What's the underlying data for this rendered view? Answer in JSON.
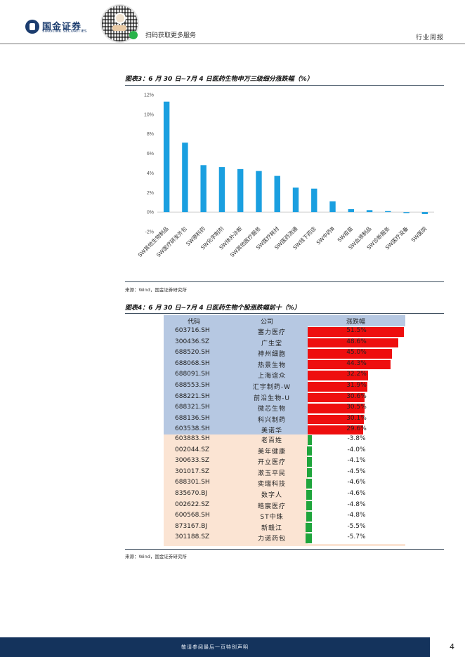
{
  "header": {
    "logo_cn": "国金证券",
    "logo_en": "SINOLINK SECURITIES",
    "scan_text": "扫码获取更多服务",
    "report_type": "行业周报"
  },
  "figure3": {
    "caption": "图表3：6 月 30 日~7月 4 日医药生物申万三级细分涨跌幅（%）",
    "source": "来源：Wind，国金证券研究所"
  },
  "chart_data": {
    "type": "bar",
    "title": "6 月 30 日~7月 4 日医药生物申万三级细分涨跌幅（%）",
    "ylabel": "",
    "xlabel": "",
    "ylim": [
      -2,
      12
    ],
    "yticks": [
      "12%",
      "10%",
      "8%",
      "6%",
      "4%",
      "2%",
      "0%",
      "-2%"
    ],
    "ytick_values": [
      12,
      10,
      8,
      6,
      4,
      2,
      0,
      -2
    ],
    "categories": [
      "SW其他生物制品",
      "SW医疗研发外包",
      "SW原料药",
      "SW化学制剂",
      "SW体外诊断",
      "SW其他医疗服务",
      "SW医疗耗材",
      "SW医药流通",
      "SW线下药店",
      "SW中药Ⅲ",
      "SW疫苗",
      "SW血液制品",
      "SW诊断服务",
      "SW医疗设备",
      "SW医院"
    ],
    "values": [
      11.3,
      7.1,
      4.8,
      4.6,
      4.4,
      4.2,
      3.7,
      2.5,
      2.4,
      1.1,
      0.3,
      0.2,
      0.1,
      -0.1,
      -0.2
    ],
    "bar_color": "#1a9fe0",
    "grid": false
  },
  "figure4": {
    "caption": "图表4：6 月 30 日~7月 4 日医药生物个股涨跌幅前十（%）",
    "source": "来源：Wind，国金证券研究所",
    "headers": [
      "代码",
      "公司",
      "涨跌幅"
    ],
    "gainers": [
      {
        "code": "603716.SH",
        "name": "塞力医疗",
        "change": "51.5%",
        "value": 51.5
      },
      {
        "code": "300436.SZ",
        "name": "广生堂",
        "change": "48.6%",
        "value": 48.6
      },
      {
        "code": "688520.SH",
        "name": "神州细胞",
        "change": "45.0%",
        "value": 45.0
      },
      {
        "code": "688068.SH",
        "name": "热景生物",
        "change": "44.3%",
        "value": 44.3
      },
      {
        "code": "688091.SH",
        "name": "上海谊众",
        "change": "32.2%",
        "value": 32.2
      },
      {
        "code": "688553.SH",
        "name": "汇宇制药-W",
        "change": "31.9%",
        "value": 31.9
      },
      {
        "code": "688221.SH",
        "name": "前沿生物-U",
        "change": "30.6%",
        "value": 30.6
      },
      {
        "code": "688321.SH",
        "name": "微芯生物",
        "change": "30.5%",
        "value": 30.5
      },
      {
        "code": "688136.SH",
        "name": "科兴制药",
        "change": "30.1%",
        "value": 30.1
      },
      {
        "code": "603538.SH",
        "name": "美诺华",
        "change": "29.6%",
        "value": 29.6
      }
    ],
    "losers": [
      {
        "code": "603883.SH",
        "name": "老百姓",
        "change": "-3.8%",
        "value": -3.8
      },
      {
        "code": "002044.SZ",
        "name": "美年健康",
        "change": "-4.0%",
        "value": -4.0
      },
      {
        "code": "300633.SZ",
        "name": "开立医疗",
        "change": "-4.1%",
        "value": -4.1
      },
      {
        "code": "301017.SZ",
        "name": "漱玉平民",
        "change": "-4.5%",
        "value": -4.5
      },
      {
        "code": "688301.SH",
        "name": "奕瑞科技",
        "change": "-4.6%",
        "value": -4.6
      },
      {
        "code": "835670.BJ",
        "name": "数字人",
        "change": "-4.6%",
        "value": -4.6
      },
      {
        "code": "002622.SZ",
        "name": "皓宸医疗",
        "change": "-4.8%",
        "value": -4.8
      },
      {
        "code": "600568.SH",
        "name": "ST中珠",
        "change": "-4.8%",
        "value": -4.8
      },
      {
        "code": "873167.BJ",
        "name": "新赣江",
        "change": "-5.5%",
        "value": -5.5
      },
      {
        "code": "301188.SZ",
        "name": "力诺药包",
        "change": "-5.7%",
        "value": -5.7
      }
    ],
    "positive_color": "#ee0e0e",
    "negative_color": "#1fa53c"
  },
  "footer": {
    "disclaimer": "敬请参阅最后一页特别声明",
    "page_number": "4"
  }
}
